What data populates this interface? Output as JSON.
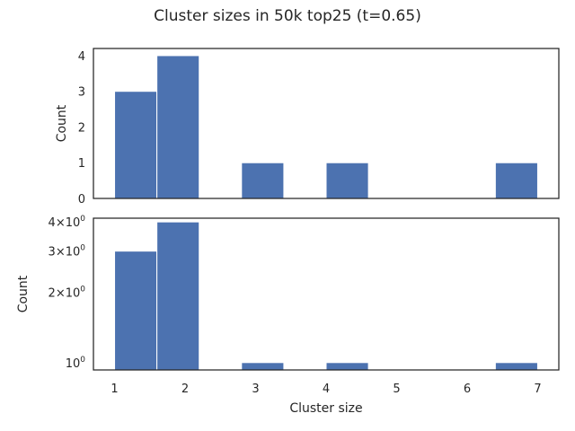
{
  "chart_data": {
    "title": "Cluster sizes in 50k top25 (t=0.65)",
    "type": "bar",
    "bins": [
      {
        "x0": 1.0,
        "x1": 1.6,
        "count": 3
      },
      {
        "x0": 1.6,
        "x1": 2.2,
        "count": 4
      },
      {
        "x0": 2.2,
        "x1": 2.8,
        "count": 0
      },
      {
        "x0": 2.8,
        "x1": 3.4,
        "count": 1
      },
      {
        "x0": 3.4,
        "x1": 4.0,
        "count": 0
      },
      {
        "x0": 4.0,
        "x1": 4.6,
        "count": 1
      },
      {
        "x0": 4.6,
        "x1": 5.2,
        "count": 0
      },
      {
        "x0": 5.2,
        "x1": 5.8,
        "count": 0
      },
      {
        "x0": 5.8,
        "x1": 6.4,
        "count": 0
      },
      {
        "x0": 6.4,
        "x1": 7.0,
        "count": 1
      }
    ],
    "bar_color": "#4c72b0",
    "xlabel": "Cluster size",
    "xticks": [
      1,
      2,
      3,
      4,
      5,
      6,
      7
    ],
    "xlim": [
      0.7,
      7.3
    ],
    "panels": [
      {
        "ylabel": "Count",
        "yscale": "linear",
        "ylim": [
          0,
          4.2
        ],
        "yticks": [
          0,
          1,
          2,
          3,
          4
        ],
        "ytick_labels": [
          "0",
          "1",
          "2",
          "3",
          "4"
        ]
      },
      {
        "ylabel": "Count",
        "yscale": "log",
        "ylim": [
          0.93,
          4.15
        ],
        "yticks": [
          1,
          2,
          3,
          4
        ],
        "ytick_labels": [
          {
            "mant": "",
            "exp": "0"
          },
          {
            "mant": "2×",
            "exp": "0"
          },
          {
            "mant": "3×",
            "exp": "0"
          },
          {
            "mant": "4×",
            "exp": "0"
          }
        ]
      }
    ]
  }
}
